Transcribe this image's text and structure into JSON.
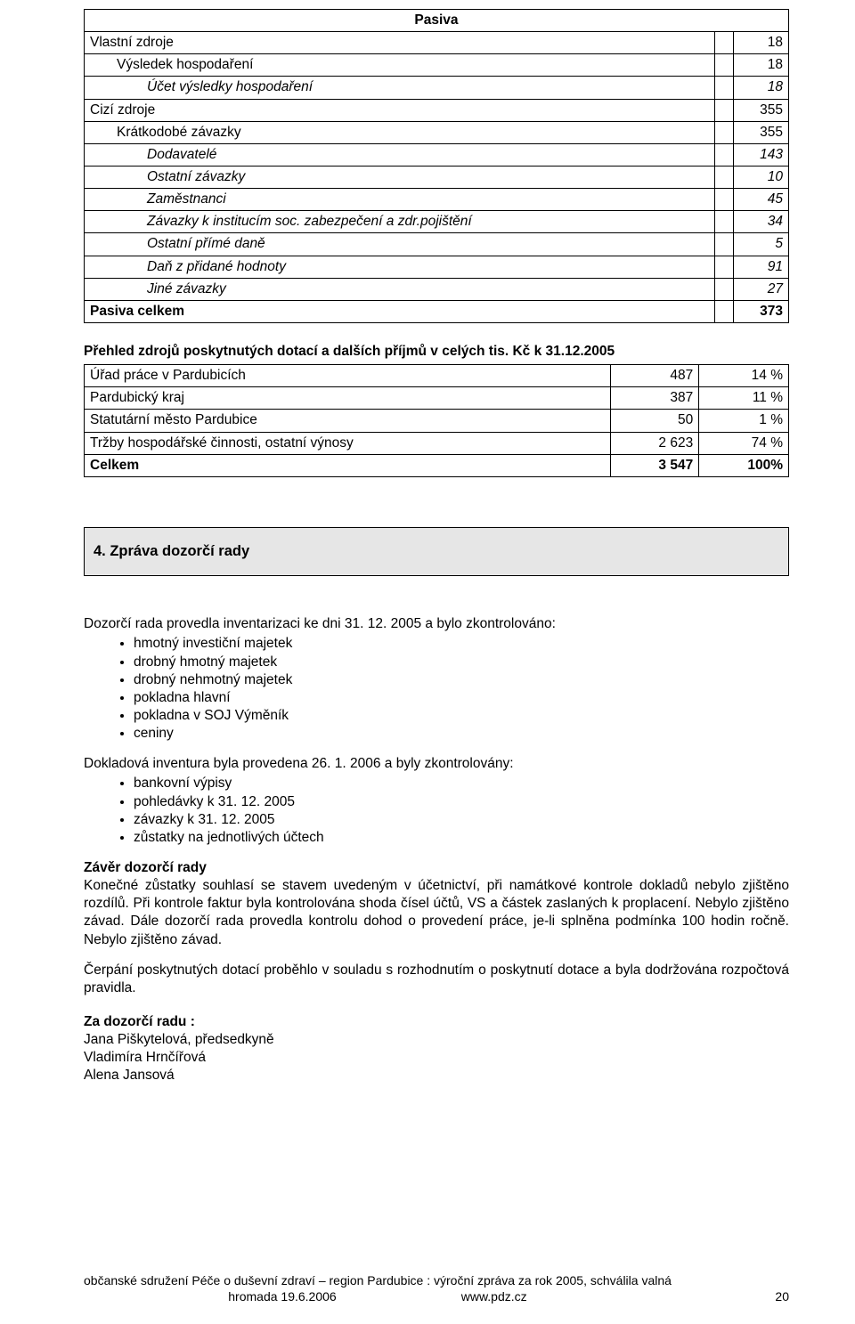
{
  "colors": {
    "page_bg": "#ffffff",
    "text": "#000000",
    "border": "#000000",
    "heading_bg": "#e6e6e6"
  },
  "typography": {
    "body_fontsize_pt": 12,
    "heading_fontsize_pt": 12.5,
    "font_family": "Trebuchet MS / sans-serif"
  },
  "pasiva_table": {
    "type": "table",
    "columns": [
      "label",
      "blank",
      "value"
    ],
    "col_widths_pct": [
      68,
      16,
      16
    ],
    "title": "Pasiva",
    "rows": [
      {
        "label": "Vlastní zdroje",
        "indent": 0,
        "v2": "",
        "v3": "18",
        "bold": false
      },
      {
        "label": "Výsledek hospodaření",
        "indent": 1,
        "v2": "",
        "v3": "18",
        "bold": false
      },
      {
        "label": "Účet výsledky hospodaření",
        "indent": 2,
        "v2": "",
        "v3": "18",
        "bold": false,
        "italic": true
      },
      {
        "label": "Cizí zdroje",
        "indent": 0,
        "v2": "",
        "v3": "355",
        "bold": false
      },
      {
        "label": "Krátkodobé závazky",
        "indent": 1,
        "v2": "",
        "v3": "355",
        "bold": false
      },
      {
        "label": "Dodavatelé",
        "indent": 2,
        "v2": "",
        "v3": "143",
        "bold": false,
        "italic": true
      },
      {
        "label": "Ostatní závazky",
        "indent": 2,
        "v2": "",
        "v3": "10",
        "bold": false,
        "italic": true
      },
      {
        "label": "Zaměstnanci",
        "indent": 2,
        "v2": "",
        "v3": "45",
        "bold": false,
        "italic": true
      },
      {
        "label": "Závazky k institucím soc. zabezpečení a zdr.pojištění",
        "indent": 2,
        "v2": "",
        "v3": "34",
        "bold": false,
        "italic": true
      },
      {
        "label": "Ostatní přímé daně",
        "indent": 2,
        "v2": "",
        "v3": "5",
        "bold": false,
        "italic": true
      },
      {
        "label": "Daň z přidané hodnoty",
        "indent": 2,
        "v2": "",
        "v3": "91",
        "bold": false,
        "italic": true
      },
      {
        "label": "Jiné závazky",
        "indent": 2,
        "v2": "",
        "v3": "27",
        "bold": false,
        "italic": true
      },
      {
        "label": "Pasiva celkem",
        "indent": 0,
        "v2": "",
        "v3": "373",
        "bold": true
      }
    ]
  },
  "prehled_heading": "Přehled zdrojů poskytnutých dotací a dalších příjmů v celých tis. Kč k 31.12.2005",
  "prehled_table": {
    "type": "table",
    "columns": [
      "label",
      "value",
      "percent"
    ],
    "col_widths_pct": [
      68,
      16,
      16
    ],
    "rows": [
      {
        "label": "Úřad práce v Pardubicích",
        "val": "487",
        "pct": "14 %"
      },
      {
        "label": "Pardubický kraj",
        "val": "387",
        "pct": "11 %"
      },
      {
        "label": "Statutární město Pardubice",
        "val": "50",
        "pct": "1 %"
      },
      {
        "label": "Tržby hospodářské činnosti, ostatní výnosy",
        "val": "2 623",
        "pct": "74 %"
      }
    ],
    "total": {
      "label": "Celkem",
      "val": "3 547",
      "pct": "100%"
    }
  },
  "section4": {
    "title": "4. Zpráva dozorčí rady",
    "p1": "Dozorčí rada provedla inventarizaci ke dni 31. 12. 2005 a bylo zkontrolováno:",
    "list1": [
      "hmotný investiční majetek",
      "drobný hmotný majetek",
      "drobný nehmotný majetek",
      "pokladna hlavní",
      "pokladna v SOJ Výměník",
      "ceniny"
    ],
    "p2": "Dokladová inventura byla provedena 26. 1. 2006 a byly zkontrolovány:",
    "list2": [
      "bankovní výpisy",
      "pohledávky k 31. 12. 2005",
      "závazky k 31. 12. 2005",
      "zůstatky na jednotlivých účtech"
    ],
    "zaver_title": "Závěr dozorčí rady",
    "zaver_body": "Konečné zůstatky souhlasí se stavem uvedeným v účetnictví, při namátkové kontrole dokladů nebylo zjištěno rozdílů. Při kontrole faktur byla kontrolována shoda čísel účtů, VS a částek zaslaných k proplacení. Nebylo zjištěno závad. Dále dozorčí rada provedla kontrolu dohod o provedení práce, je-li splněna podmínka 100 hodin ročně. Nebylo zjištěno závad.",
    "cerpani": "Čerpání poskytnutých dotací proběhlo v souladu s rozhodnutím o poskytnutí dotace a byla dodržována rozpočtová pravidla.",
    "sig_label": "Za dozorčí radu :",
    "sig_names": [
      "Jana Piškytelová, předsedkyně",
      "Vladimíra Hrnčířová",
      "Alena Jansová"
    ]
  },
  "footer": {
    "line1": "občanské sdružení Péče o duševní zdraví – region Pardubice : výroční zpráva za rok 2005, schválila valná",
    "line2_left": "hromada 19.6.2006",
    "line2_right": "www.pdz.cz",
    "page_no": "20"
  }
}
